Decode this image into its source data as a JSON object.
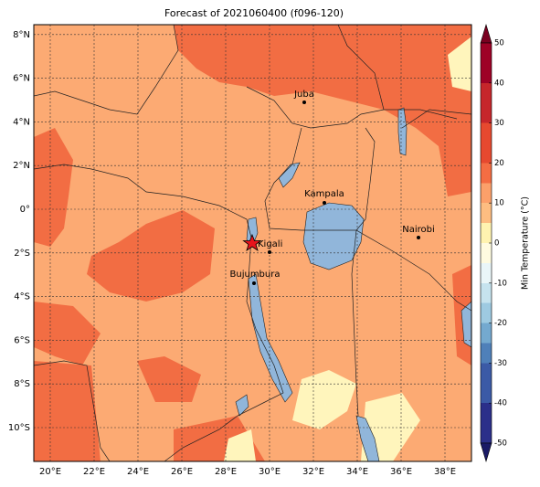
{
  "title": "Forecast of 2021060400 (f096-120)",
  "map": {
    "lon_ticks": [
      {
        "value": 20,
        "label": "20°E"
      },
      {
        "value": 22,
        "label": "22°E"
      },
      {
        "value": 24,
        "label": "24°E"
      },
      {
        "value": 26,
        "label": "26°E"
      },
      {
        "value": 28,
        "label": "28°E"
      },
      {
        "value": 30,
        "label": "30°E"
      },
      {
        "value": 32,
        "label": "32°E"
      },
      {
        "value": 34,
        "label": "34°E"
      },
      {
        "value": 36,
        "label": "36°E"
      },
      {
        "value": 38,
        "label": "38°E"
      }
    ],
    "lat_ticks": [
      {
        "value": 8,
        "label": "8°N"
      },
      {
        "value": 6,
        "label": "6°N"
      },
      {
        "value": 4,
        "label": "4°N"
      },
      {
        "value": 2,
        "label": "2°N"
      },
      {
        "value": 0,
        "label": "0°"
      },
      {
        "value": -2,
        "label": "2°S"
      },
      {
        "value": -4,
        "label": "4°S"
      },
      {
        "value": -6,
        "label": "6°S"
      },
      {
        "value": -8,
        "label": "8°S"
      },
      {
        "value": -10,
        "label": "10°S"
      }
    ],
    "cities": [
      "Juba",
      "Kampala",
      "Nairobi",
      "Kigali",
      "Bujumbura"
    ]
  },
  "colorbar": {
    "label": "Min Temperature (°C)",
    "ticks": [
      50,
      40,
      30,
      20,
      10,
      0,
      -10,
      -20,
      -30,
      -40,
      -50
    ]
  }
}
